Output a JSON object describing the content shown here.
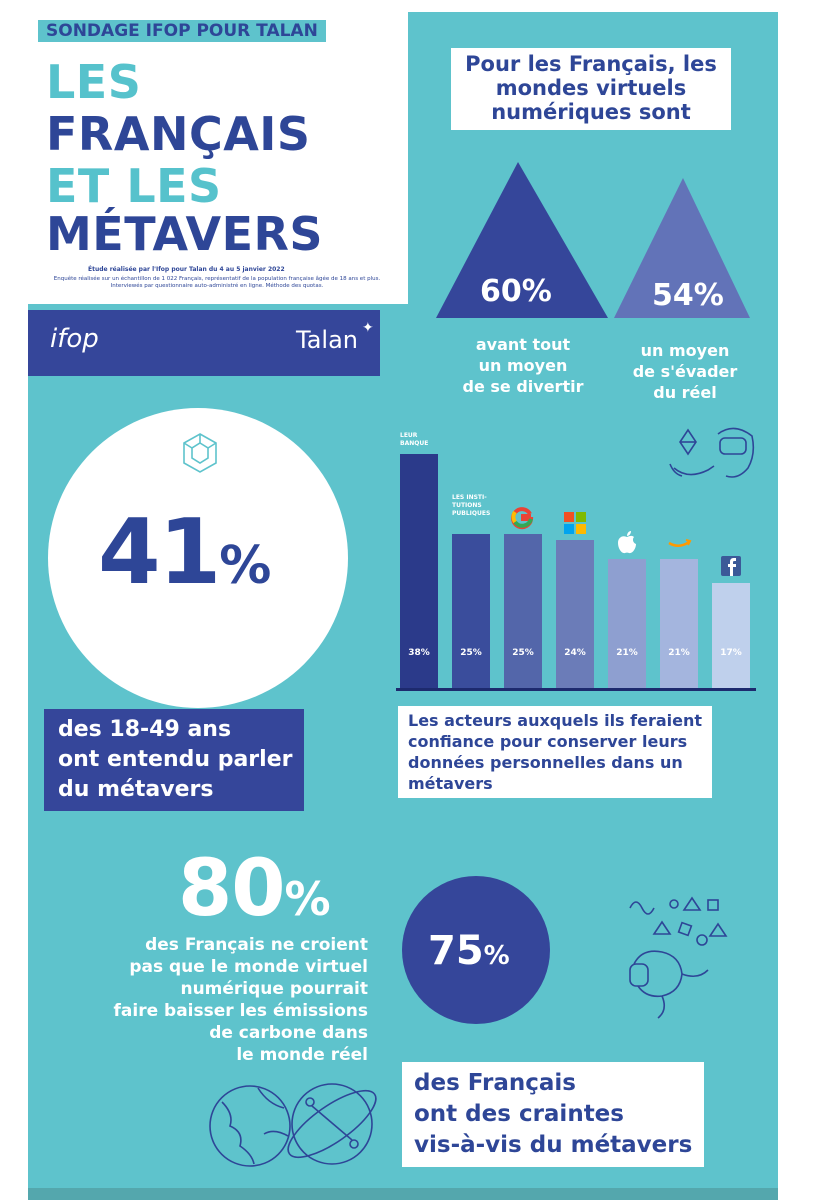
{
  "header": {
    "tag": "SONDAGE IFOP POUR TALAN",
    "title_lines": [
      "LES",
      "FRANÇAIS",
      "ET LES",
      "MÉTAVERS"
    ],
    "study_title": "Étude réalisée par l'Ifop pour Talan du 4 au 5 janvier 2022",
    "study_text": "Enquête réalisée sur un échantillon de 1 022 Français, représentatif de la population française âgée de 18 ans et plus. Interviewés par questionnaire auto-administré en ligne. Méthode des quotas."
  },
  "logos": {
    "ifop": "ifop",
    "talan": "Talan"
  },
  "virtual_worlds": {
    "question": "Pour les Français, les mondes virtuels numériques sont",
    "items": [
      {
        "value": "60%",
        "label_lines": [
          "avant tout",
          "un moyen",
          "de se divertir"
        ],
        "color": "#35469a"
      },
      {
        "value": "54%",
        "label_lines": [
          "un moyen",
          "de s'évader",
          "du réel"
        ],
        "color": "#6273b8"
      }
    ]
  },
  "stat41": {
    "value": "41",
    "unit": "%",
    "caption_lines": [
      "des 18-49 ans",
      "ont entendu parler",
      "du métavers"
    ]
  },
  "chart_data": {
    "type": "bar",
    "categories": [
      "LEUR BANQUE",
      "LES INSTI- TUTIONS PUBLIQUES",
      "Google",
      "Microsoft",
      "Apple",
      "Amazon",
      "Facebook"
    ],
    "labels_shown": [
      "LEUR BANQUE",
      "LES INSTI-TUTIONS PUBLIQUES"
    ],
    "values": [
      38,
      25,
      25,
      24,
      21,
      21,
      17
    ],
    "value_labels": [
      "38%",
      "25%",
      "25%",
      "24%",
      "21%",
      "21%",
      "17%"
    ],
    "colors": [
      "#2b3a8a",
      "#3a4d9c",
      "#5366aa",
      "#6b7cb8",
      "#8e9fd0",
      "#a4b5de",
      "#bfd0ec"
    ],
    "ylim": [
      0,
      38
    ],
    "caption": "Les acteurs auxquels ils feraient confiance pour conserver leurs données personnelles dans un métavers",
    "caption_lines": [
      "Les acteurs auxquels ils feraient",
      "confiance pour conserver leurs",
      "données personnelles dans un",
      "métavers"
    ]
  },
  "stat80": {
    "value": "80",
    "unit": "%",
    "text_lines": [
      "des Français ne croient",
      "pas que le monde virtuel",
      "numérique pourrait",
      "faire baisser les émissions",
      "de carbone dans",
      "le monde réel"
    ]
  },
  "stat75": {
    "value": "75",
    "unit": "%",
    "caption_lines": [
      "des Français",
      "ont des craintes",
      "vis-à-vis du métavers"
    ]
  },
  "colors": {
    "background": "#5ec3cc",
    "navy": "#2e4697",
    "white": "#ffffff"
  },
  "icons": [
    "cube-network-icon",
    "vr-headset-hand-icon",
    "google-icon",
    "microsoft-icon",
    "apple-icon",
    "amazon-icon",
    "facebook-icon",
    "vr-shapes-icon",
    "globe-network-icon",
    "globe-orbit-icon"
  ]
}
